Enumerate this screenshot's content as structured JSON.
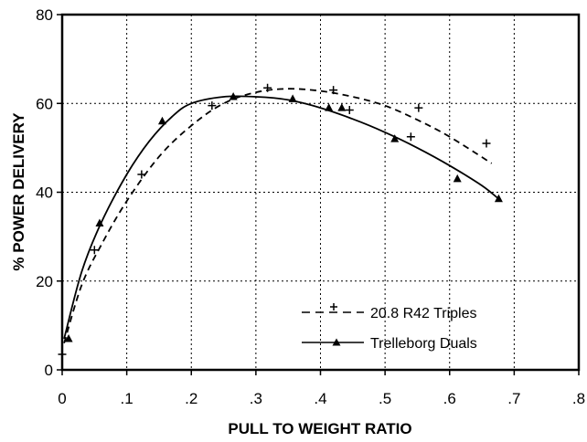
{
  "chart_data": {
    "type": "scatter",
    "xlabel": "PULL TO WEIGHT RATIO",
    "ylabel": "% POWER DELIVERY",
    "xlim": [
      0,
      0.8
    ],
    "ylim": [
      0,
      80
    ],
    "x_ticks": [
      0,
      0.1,
      0.2,
      0.3,
      0.4,
      0.5,
      0.6,
      0.7,
      0.8
    ],
    "x_tick_labels": [
      "0",
      ".1",
      ".2",
      ".3",
      ".4",
      ".5",
      ".6",
      ".7",
      ".8"
    ],
    "y_ticks": [
      0,
      20,
      40,
      60,
      80
    ],
    "y_tick_labels": [
      "0",
      "20",
      "40",
      "60",
      "80"
    ],
    "grid": true,
    "legend_position": "bottom-center",
    "series": [
      {
        "name": "20.8 R42 Triples",
        "marker": "plus",
        "line_style": "dashed",
        "color": "#000000",
        "points": [
          {
            "x": 0.0,
            "y": 3.5
          },
          {
            "x": 0.05,
            "y": 27
          },
          {
            "x": 0.123,
            "y": 44
          },
          {
            "x": 0.232,
            "y": 59.5
          },
          {
            "x": 0.318,
            "y": 63.5
          },
          {
            "x": 0.42,
            "y": 63
          },
          {
            "x": 0.445,
            "y": 58.5
          },
          {
            "x": 0.54,
            "y": 52.5
          },
          {
            "x": 0.552,
            "y": 59
          },
          {
            "x": 0.657,
            "y": 51
          }
        ],
        "fit": [
          {
            "x": 0.003,
            "y": 6
          },
          {
            "x": 0.03,
            "y": 19
          },
          {
            "x": 0.06,
            "y": 28
          },
          {
            "x": 0.1,
            "y": 38
          },
          {
            "x": 0.15,
            "y": 48
          },
          {
            "x": 0.2,
            "y": 55
          },
          {
            "x": 0.25,
            "y": 60
          },
          {
            "x": 0.3,
            "y": 62.5
          },
          {
            "x": 0.35,
            "y": 63.3
          },
          {
            "x": 0.4,
            "y": 62.8
          },
          {
            "x": 0.45,
            "y": 61.5
          },
          {
            "x": 0.5,
            "y": 59.5
          },
          {
            "x": 0.55,
            "y": 56.3
          },
          {
            "x": 0.6,
            "y": 52.5
          },
          {
            "x": 0.665,
            "y": 46.5
          }
        ]
      },
      {
        "name": "Trelleborg Duals",
        "marker": "triangle",
        "line_style": "solid",
        "color": "#000000",
        "points": [
          {
            "x": 0.01,
            "y": 7
          },
          {
            "x": 0.058,
            "y": 33
          },
          {
            "x": 0.155,
            "y": 56
          },
          {
            "x": 0.265,
            "y": 61.5
          },
          {
            "x": 0.357,
            "y": 61
          },
          {
            "x": 0.413,
            "y": 59
          },
          {
            "x": 0.433,
            "y": 59
          },
          {
            "x": 0.515,
            "y": 52
          },
          {
            "x": 0.612,
            "y": 43
          },
          {
            "x": 0.676,
            "y": 38.5
          }
        ],
        "fit": [
          {
            "x": 0.003,
            "y": 7
          },
          {
            "x": 0.03,
            "y": 22
          },
          {
            "x": 0.06,
            "y": 33
          },
          {
            "x": 0.1,
            "y": 44
          },
          {
            "x": 0.135,
            "y": 51.5
          },
          {
            "x": 0.17,
            "y": 57
          },
          {
            "x": 0.2,
            "y": 60
          },
          {
            "x": 0.25,
            "y": 61.5
          },
          {
            "x": 0.3,
            "y": 61.5
          },
          {
            "x": 0.35,
            "y": 60.8
          },
          {
            "x": 0.4,
            "y": 59
          },
          {
            "x": 0.45,
            "y": 56.5
          },
          {
            "x": 0.5,
            "y": 53.5
          },
          {
            "x": 0.55,
            "y": 50
          },
          {
            "x": 0.6,
            "y": 46
          },
          {
            "x": 0.65,
            "y": 41.5
          },
          {
            "x": 0.676,
            "y": 38.5
          }
        ]
      }
    ]
  }
}
